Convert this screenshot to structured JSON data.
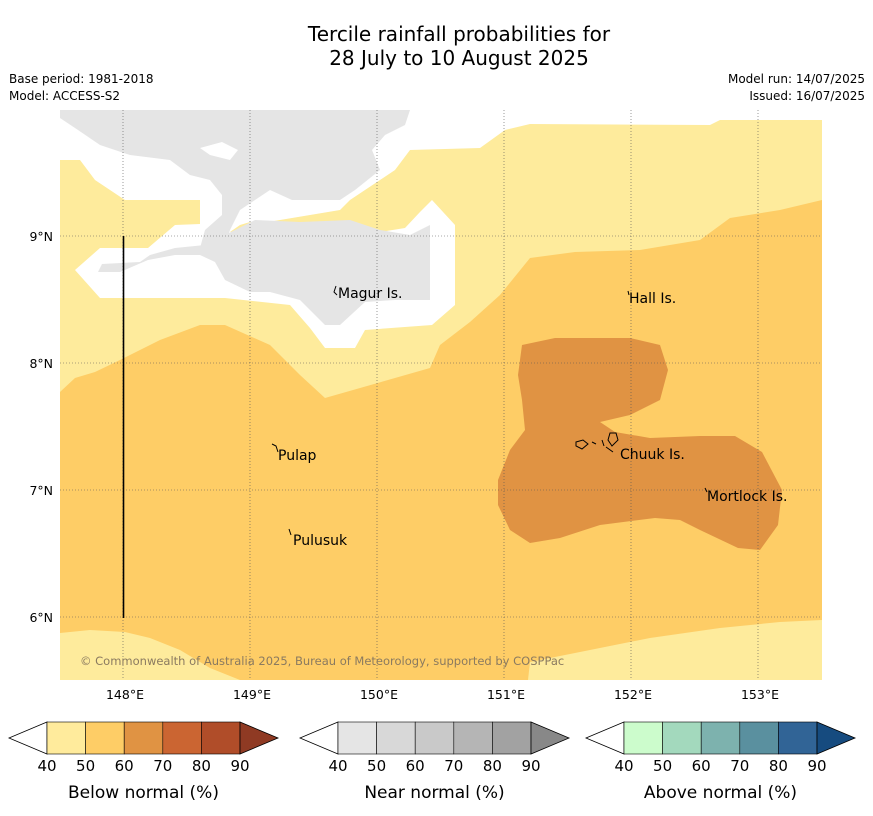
{
  "title_line1": "Tercile rainfall probabilities for",
  "title_line2": "28 July to 10 August 2025",
  "base_period": "Base period: 1981-2018",
  "model": "Model: ACCESS-S2",
  "model_run": "Model run: 14/07/2025",
  "issued": "Issued: 16/07/2025",
  "copyright": "© Commonwealth of Australia 2025, Bureau of Meteorology, supported by COSPPac",
  "places": {
    "magur": "Magur Is.",
    "hall": "Hall Is.",
    "pulap": "Pulap",
    "chuuk": "Chuuk Is.",
    "mortlock": "Mortlock Is.",
    "pulusuk": "Pulusuk"
  },
  "axes": {
    "x_ticks": [
      "148°E",
      "149°E",
      "150°E",
      "151°E",
      "152°E",
      "153°E"
    ],
    "y_ticks": [
      "9°N",
      "8°N",
      "7°N",
      "6°N"
    ]
  },
  "colorbars": {
    "below": {
      "label": "Below normal (%)",
      "ticks": [
        "40",
        "50",
        "60",
        "70",
        "80",
        "90"
      ],
      "colors": [
        "#ffffff",
        "#ffeb9c",
        "#fecd66",
        "#e09343",
        "#cb6532",
        "#b04d29",
        "#8f3a23"
      ]
    },
    "near": {
      "label": "Near normal (%)",
      "ticks": [
        "40",
        "50",
        "60",
        "70",
        "80",
        "90"
      ],
      "colors": [
        "#ffffff",
        "#e5e5e5",
        "#d8d8d8",
        "#c9c9c9",
        "#b5b5b5",
        "#a2a2a2",
        "#888888"
      ]
    },
    "above": {
      "label": "Above normal (%)",
      "ticks": [
        "40",
        "50",
        "60",
        "70",
        "80",
        "90"
      ],
      "colors": [
        "#ffffff",
        "#ccfccc",
        "#a3d9bd",
        "#7db2ae",
        "#5a909f",
        "#316496",
        "#164b7f"
      ]
    }
  },
  "map_colors": {
    "below_40_50": "#feeb9c",
    "below_50_60": "#fecd66",
    "below_60_70": "#e09343",
    "near_40_50": "#e5e5e5"
  }
}
